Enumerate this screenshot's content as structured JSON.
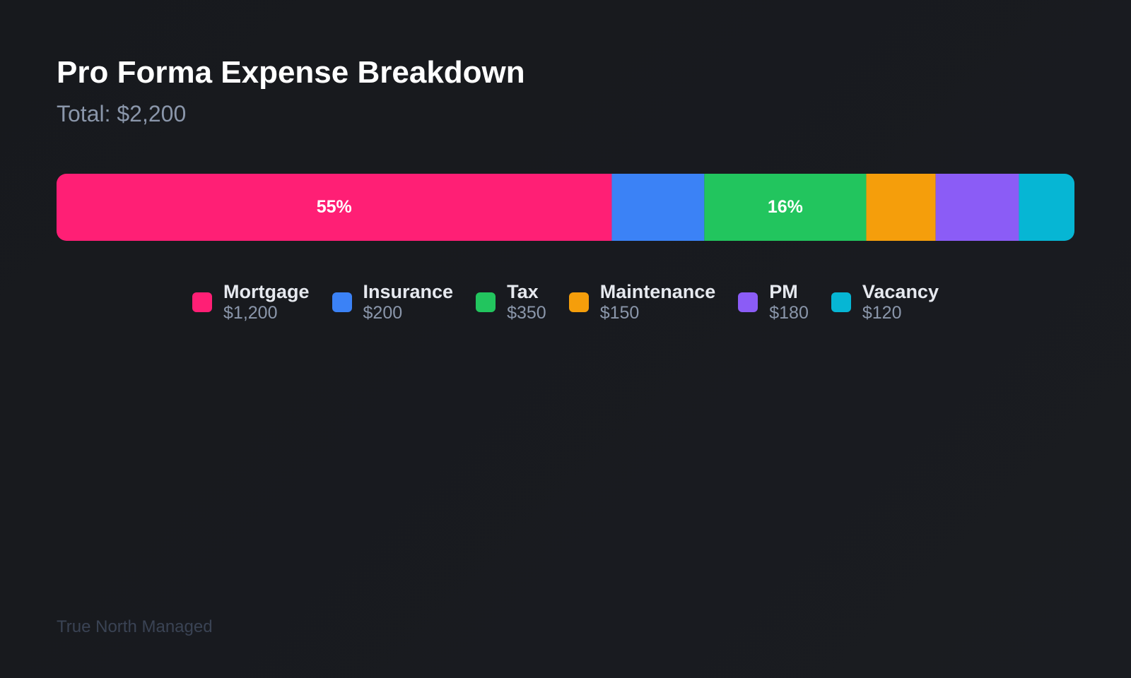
{
  "chart_data": {
    "type": "stacked-bar",
    "title": "Pro Forma Expense Breakdown",
    "subtitle": "Total: $2,200",
    "categories": [
      "Mortgage",
      "Insurance",
      "Tax",
      "Maintenance",
      "PM",
      "Vacancy"
    ],
    "values": [
      1200,
      200,
      350,
      150,
      180,
      120
    ],
    "value_labels": [
      "$1,200",
      "$200",
      "$350",
      "$150",
      "$180",
      "$120"
    ],
    "percent_labels": [
      "55%",
      null,
      "16%",
      null,
      null,
      null
    ],
    "colors": [
      "#ff1f75",
      "#3b82f6",
      "#22c55e",
      "#f59e0b",
      "#8b5cf6",
      "#06b6d4"
    ]
  },
  "footer": "True North Managed"
}
